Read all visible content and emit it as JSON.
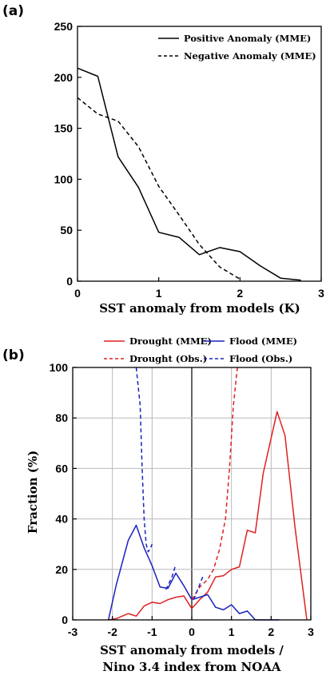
{
  "chart_data": [
    {
      "panel": "(a)",
      "type": "line",
      "title": "",
      "xlabel": "SST anomaly from models (K)",
      "ylabel": "",
      "xlim": [
        0,
        3
      ],
      "ylim": [
        0,
        250
      ],
      "xticks": [
        "0",
        "1",
        "2",
        "3"
      ],
      "yticks": [
        "0",
        "50",
        "100",
        "150",
        "200",
        "250"
      ],
      "grid": false,
      "legend": "top-right",
      "series": [
        {
          "name": "Positive Anomaly (MME)",
          "style": "solid",
          "color": "#000000",
          "x": [
            0,
            0.25,
            0.5,
            0.75,
            1.0,
            1.25,
            1.5,
            1.75,
            2.0,
            2.25,
            2.5,
            2.75
          ],
          "y": [
            209,
            201,
            122,
            92,
            48,
            43,
            26,
            33,
            29,
            15,
            3,
            1
          ]
        },
        {
          "name": "Negative Anomaly (MME)",
          "style": "dashed",
          "color": "#000000",
          "x": [
            0,
            0.25,
            0.5,
            0.75,
            1.0,
            1.25,
            1.5,
            1.75,
            2.0
          ],
          "y": [
            180,
            164,
            157,
            132,
            93,
            65,
            36,
            14,
            2
          ]
        }
      ]
    },
    {
      "panel": "(b)",
      "type": "line",
      "title": "",
      "xlabel_line1": "SST anomaly from models /",
      "xlabel_line2": "Nino 3.4 index from NOAA",
      "ylabel": "Fraction (%)",
      "xlim": [
        -3,
        3
      ],
      "ylim": [
        0,
        100
      ],
      "xticks": [
        "-3",
        "-2",
        "-1",
        "0",
        "1",
        "2",
        "3"
      ],
      "yticks": [
        "0",
        "20",
        "40",
        "60",
        "80",
        "100"
      ],
      "grid": true,
      "legend": "top",
      "series": [
        {
          "name": "Drought (MME)",
          "style": "solid",
          "color": "#e02020",
          "x": [
            -2.1,
            -1.9,
            -1.6,
            -1.4,
            -1.2,
            -1.0,
            -0.8,
            -0.6,
            -0.4,
            -0.2,
            0.0,
            0.2,
            0.4,
            0.6,
            0.8,
            1.0,
            1.2,
            1.4,
            1.6,
            1.8,
            2.0,
            2.15,
            2.35,
            2.6,
            2.9
          ],
          "y": [
            0,
            0.5,
            2.5,
            1.5,
            5.5,
            7,
            6.5,
            8,
            9,
            9.5,
            4.5,
            8,
            11,
            17,
            17.5,
            20,
            21,
            35.5,
            34.5,
            58,
            72,
            82.5,
            73,
            37,
            0
          ]
        },
        {
          "name": "Flood (MME)",
          "style": "solid",
          "color": "#1a22c0",
          "x": [
            -2.1,
            -1.9,
            -1.6,
            -1.4,
            -1.2,
            -1.0,
            -0.8,
            -0.6,
            -0.4,
            -0.2,
            0.0,
            0.2,
            0.4,
            0.6,
            0.8,
            1.0,
            1.2,
            1.4,
            1.6,
            1.8,
            2.0,
            2.2
          ],
          "y": [
            0,
            14,
            31.5,
            37.5,
            28.5,
            21.5,
            13,
            12.5,
            18.5,
            13.5,
            8,
            9,
            10,
            5,
            4,
            6,
            2.5,
            3.5,
            0,
            0,
            0,
            0
          ]
        },
        {
          "name": "Drought (Obs.)",
          "style": "dashed",
          "color": "#e02020",
          "x": [
            0.0,
            0.2,
            0.4,
            0.55,
            0.7,
            0.85,
            0.95,
            1.05,
            1.15
          ],
          "y": [
            8,
            13,
            16,
            20,
            28,
            40,
            60,
            85,
            100
          ]
        },
        {
          "name": "Flood (Obs.)",
          "style": "dashed",
          "color": "#1a22c0",
          "x": [
            -1.4,
            -1.3,
            -1.25,
            -1.2,
            -1.15,
            -1.1,
            -1.05,
            -1.0
          ],
          "y": [
            100,
            85,
            60,
            40,
            30,
            27,
            28,
            30
          ]
        },
        {
          "name": "",
          "style": "dashed",
          "color": "#1a22c0",
          "x": [
            -0.65,
            -0.5,
            -0.4
          ],
          "y": [
            12,
            17,
            22
          ]
        },
        {
          "name": "",
          "style": "dashed",
          "color": "#1a22c0",
          "x": [
            0.05,
            0.2,
            0.3
          ],
          "y": [
            8,
            14,
            18
          ]
        }
      ]
    }
  ]
}
